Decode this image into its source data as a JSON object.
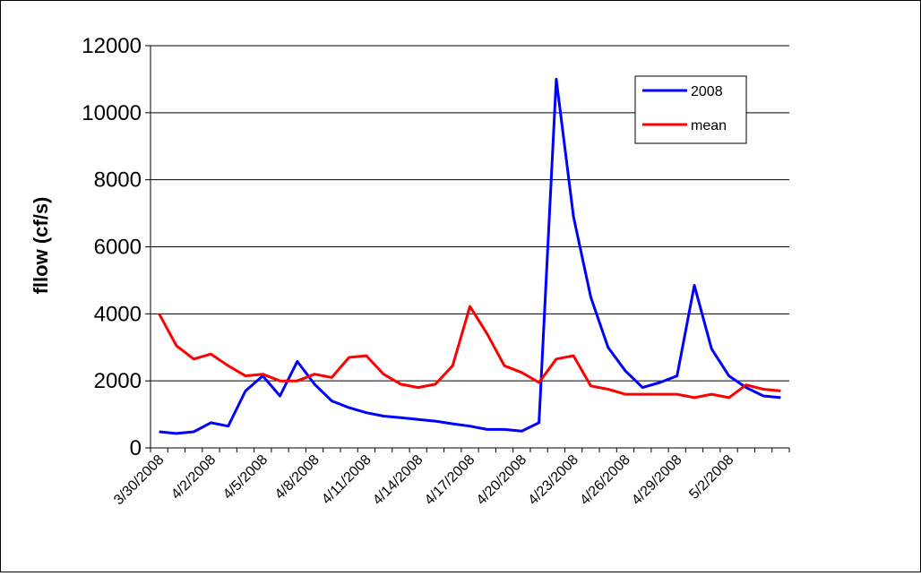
{
  "chart_data": {
    "type": "line",
    "title": "",
    "xlabel": "",
    "ylabel": "fllow (cf/s)",
    "ylim": [
      0,
      12000
    ],
    "yticks": [
      0,
      2000,
      4000,
      6000,
      8000,
      10000,
      12000
    ],
    "grid": "horizontal",
    "legend_position": "top-right",
    "x": [
      "3/30/2008",
      "3/31/2008",
      "4/1/2008",
      "4/2/2008",
      "4/3/2008",
      "4/4/2008",
      "4/5/2008",
      "4/6/2008",
      "4/7/2008",
      "4/8/2008",
      "4/9/2008",
      "4/10/2008",
      "4/11/2008",
      "4/12/2008",
      "4/13/2008",
      "4/14/2008",
      "4/15/2008",
      "4/16/2008",
      "4/17/2008",
      "4/18/2008",
      "4/19/2008",
      "4/20/2008",
      "4/21/2008",
      "4/22/2008",
      "4/23/2008",
      "4/24/2008",
      "4/25/2008",
      "4/26/2008",
      "4/27/2008",
      "4/28/2008",
      "4/29/2008",
      "4/30/2008",
      "5/1/2008",
      "5/2/2008",
      "5/3/2008",
      "5/4/2008",
      "5/5/2008"
    ],
    "xtick_labels": [
      "3/30/2008",
      "4/2/2008",
      "4/5/2008",
      "4/8/2008",
      "4/11/2008",
      "4/14/2008",
      "4/17/2008",
      "4/20/2008",
      "4/23/2008",
      "4/26/2008",
      "4/29/2008",
      "5/2/2008"
    ],
    "series": [
      {
        "name": "2008",
        "color": "#0000ff",
        "values": [
          480,
          430,
          480,
          750,
          650,
          1700,
          2150,
          1550,
          2580,
          1900,
          1400,
          1200,
          1050,
          950,
          900,
          850,
          800,
          720,
          650,
          550,
          550,
          500,
          750,
          11000,
          6900,
          4500,
          3000,
          2300,
          1800,
          1950,
          2150,
          4850,
          2950,
          2150,
          1800,
          1550,
          1500
        ]
      },
      {
        "name": "mean",
        "color": "#ff0000",
        "values": [
          4000,
          3050,
          2650,
          2800,
          2450,
          2150,
          2200,
          2000,
          2000,
          2200,
          2100,
          2700,
          2750,
          2200,
          1900,
          1800,
          1900,
          2450,
          4220,
          3400,
          2450,
          2250,
          1950,
          2650,
          2750,
          1850,
          1750,
          1600,
          1600,
          1600,
          1600,
          1500,
          1600,
          1500,
          1880,
          1750,
          1700
        ]
      }
    ]
  }
}
